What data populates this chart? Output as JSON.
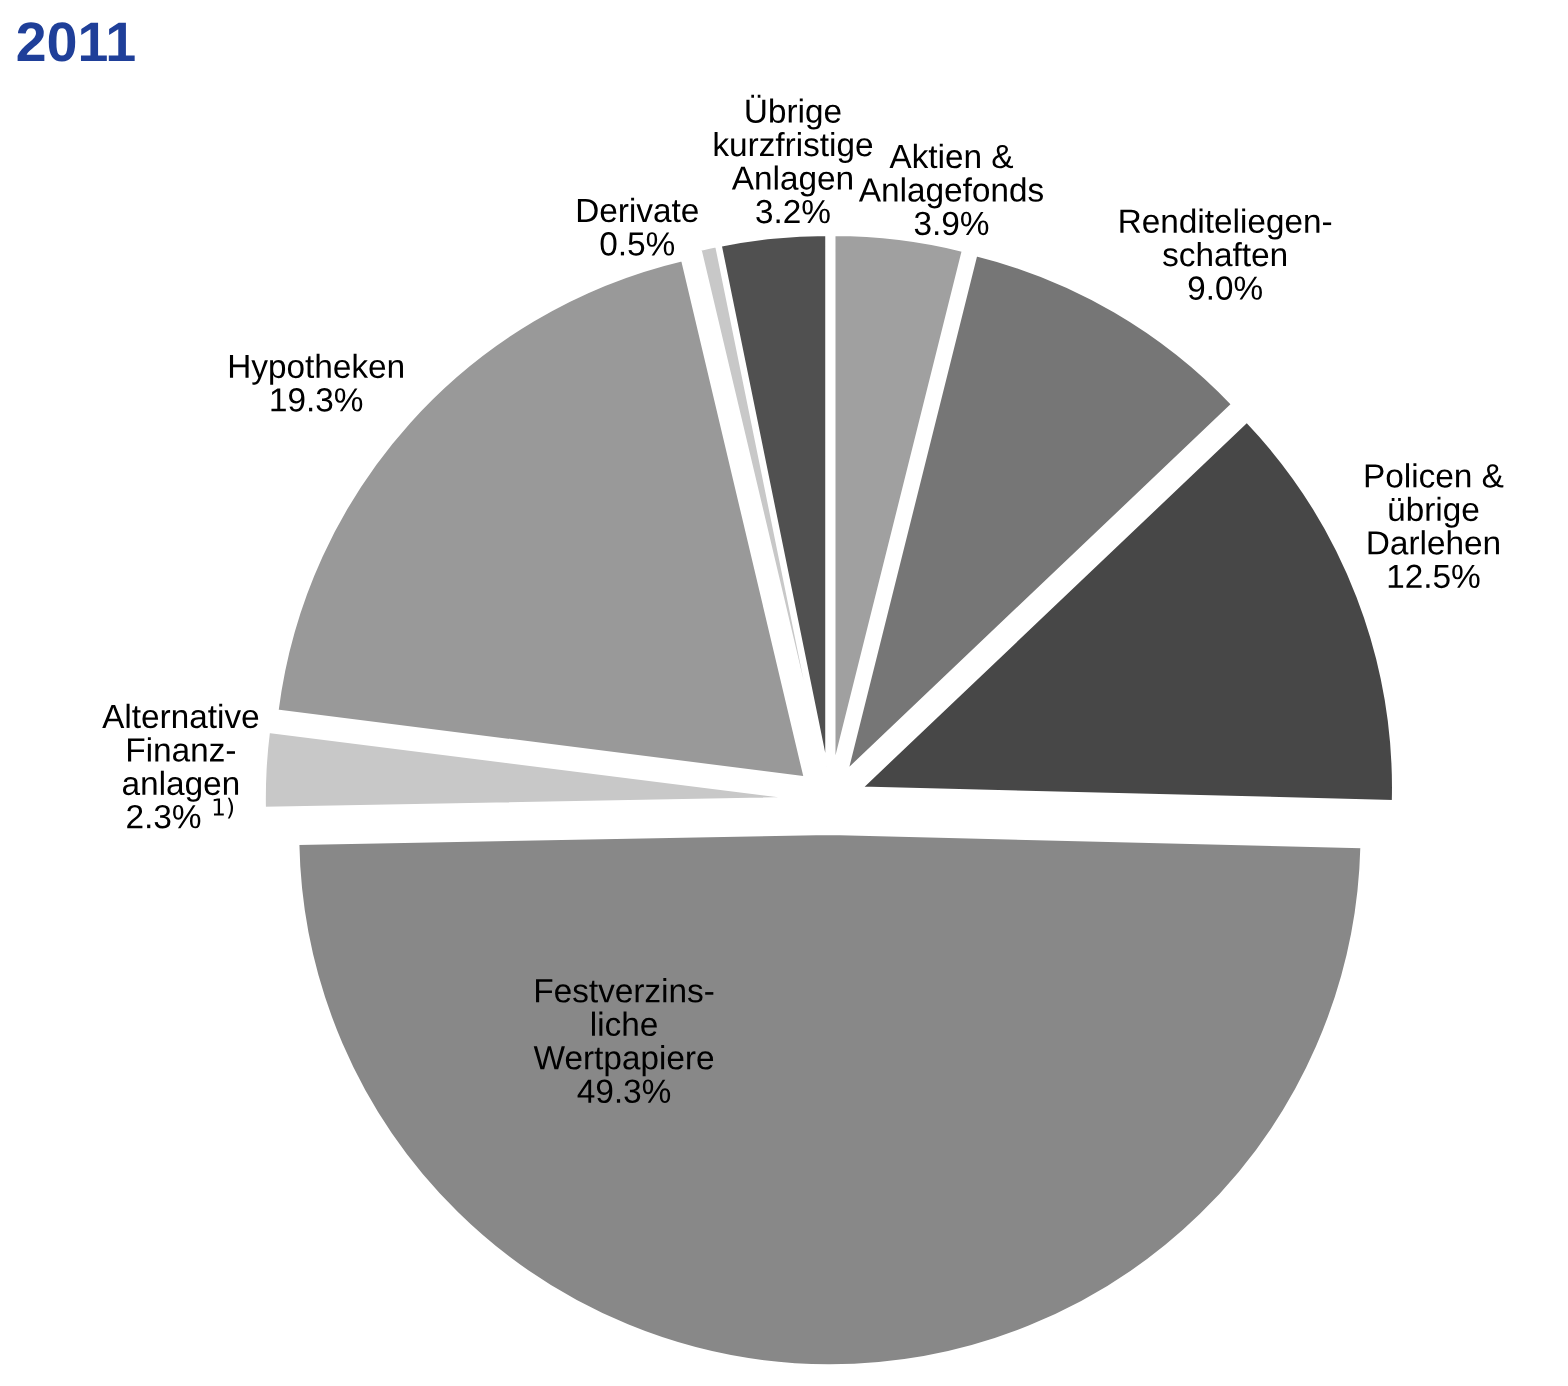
{
  "chart_data": {
    "type": "pie",
    "title": "2011",
    "categories": [
      "Aktien &\nAnlagefonds",
      "Renditeliegen-\nschaften",
      "Policen &\nübrige\nDarlehen",
      "Festverzins-\nliche\nWertpapiere",
      "Alternative\nFinanz-\nanlagen",
      "Hypotheken",
      "Derivate",
      "Übrige\nkurzfristige\nAnlagen"
    ],
    "values": [
      3.9,
      9.0,
      12.5,
      49.3,
      2.3,
      19.3,
      0.5,
      3.2
    ],
    "value_labels": [
      "3.9%",
      "9.0%",
      "12.5%",
      "49.3%",
      "2.3% $^{1)}$",
      "19.3%",
      "0.5%",
      "3.2%"
    ],
    "colors": [
      "#a0a0a0",
      "#767676",
      "#474747",
      "#888888",
      "#c8c8c8",
      "#999999",
      "#c8c8c8",
      "#505050"
    ]
  }
}
